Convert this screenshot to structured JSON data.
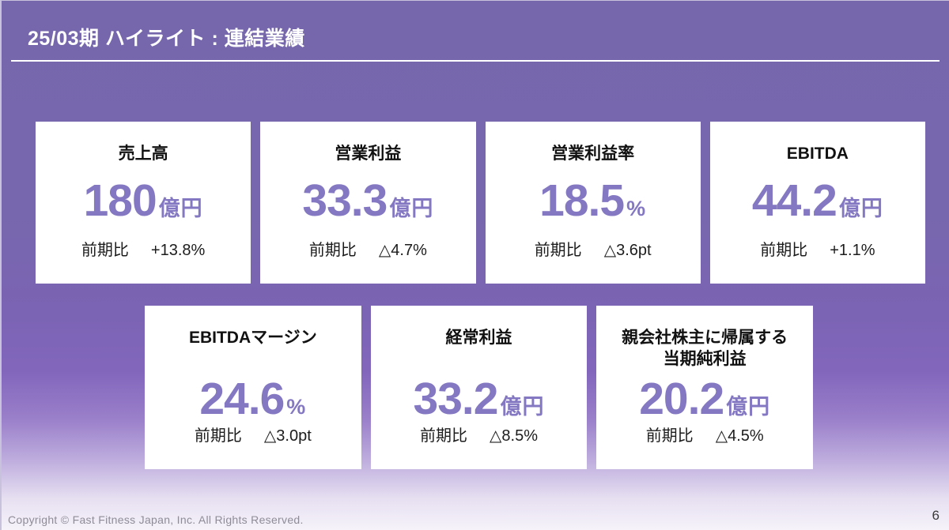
{
  "slide": {
    "title": "25/03期 ハイライト : 連結業績",
    "footer": "Copyright © Fast Fitness Japan, Inc. All Rights Reserved.",
    "page_number": "6"
  },
  "colors": {
    "background_top": "#7667ad",
    "background_bottom": "#f6f3fa",
    "card_background": "#ffffff",
    "accent_number": "#8478c2",
    "title_text": "#ffffff",
    "label_text": "#111111"
  },
  "cards": [
    {
      "title": "売上高",
      "value": "180",
      "unit": "億円",
      "change_label": "前期比",
      "change_value": "+13.8%"
    },
    {
      "title": "営業利益",
      "value": "33.3",
      "unit": "億円",
      "change_label": "前期比",
      "change_value": "△4.7%"
    },
    {
      "title": "営業利益率",
      "value": "18.5",
      "unit": "%",
      "change_label": "前期比",
      "change_value": "△3.6pt"
    },
    {
      "title": "EBITDA",
      "value": "44.2",
      "unit": "億円",
      "change_label": "前期比",
      "change_value": "+1.1%"
    },
    {
      "title": "EBITDAマージン",
      "value": "24.6",
      "unit": "%",
      "change_label": "前期比",
      "change_value": "△3.0pt"
    },
    {
      "title": "経常利益",
      "value": "33.2",
      "unit": "億円",
      "change_label": "前期比",
      "change_value": "△8.5%"
    },
    {
      "title": "親会社株主に帰属する\n当期純利益",
      "value": "20.2",
      "unit": "億円",
      "change_label": "前期比",
      "change_value": "△4.5%"
    }
  ]
}
